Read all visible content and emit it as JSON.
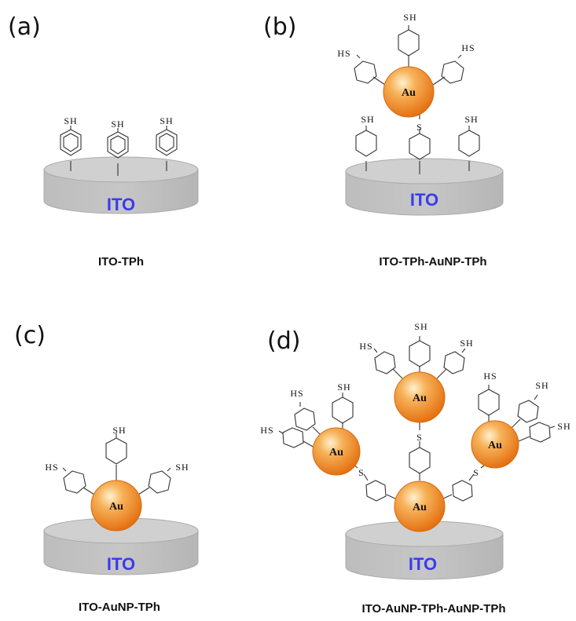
{
  "panels": {
    "a": {
      "label": "(a)",
      "caption": "ITO-TPh",
      "substrate": "ITO"
    },
    "b": {
      "label": "(b)",
      "caption": "ITO-TPh-AuNP-TPh",
      "substrate": "ITO"
    },
    "c": {
      "label": "(c)",
      "caption": "ITO-AuNP-TPh",
      "substrate": "ITO"
    },
    "d": {
      "label": "(d)",
      "caption": "ITO-AuNP-TPh-AuNP-TPh",
      "substrate": "ITO"
    }
  },
  "labels": {
    "au": "Au",
    "sh": "SH",
    "hs": "HS",
    "s": "S"
  },
  "colors": {
    "substrate_gray": "#c0c0c0",
    "ito_text": "#3a3af0",
    "gold_sphere": "#f39a33"
  }
}
